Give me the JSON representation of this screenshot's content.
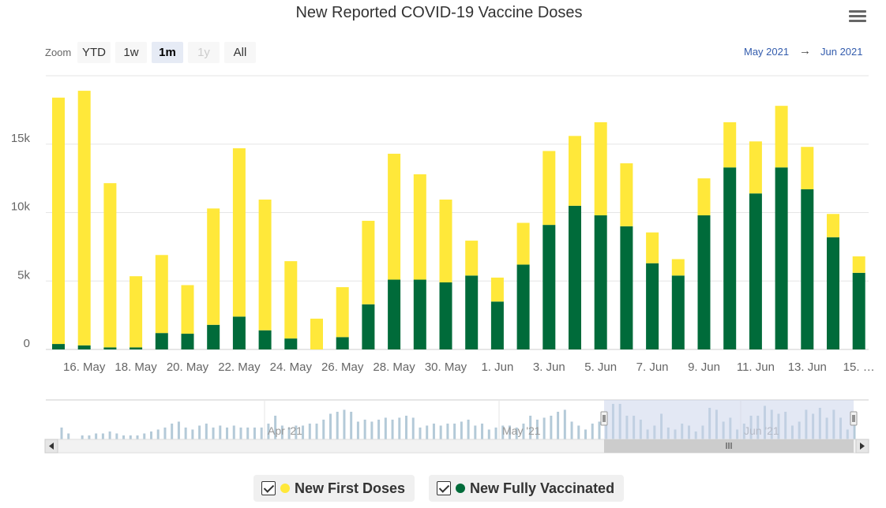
{
  "title": "New Reported COVID-19 Vaccine Doses",
  "menu_icon": "hamburger-menu-icon",
  "zoom": {
    "label": "Zoom",
    "buttons": [
      {
        "label": "YTD",
        "state": "normal"
      },
      {
        "label": "1w",
        "state": "normal"
      },
      {
        "label": "1m",
        "state": "selected"
      },
      {
        "label": "1y",
        "state": "disabled"
      },
      {
        "label": "All",
        "state": "normal"
      }
    ]
  },
  "range": {
    "from": "May 2021",
    "arrow": "→",
    "to": "Jun 2021"
  },
  "colors": {
    "first_doses": "#ffe83a",
    "fully_vaccinated": "#006b3a",
    "navigator_bars": "#b4cad8",
    "navigator_window": "#ccd6eb"
  },
  "navigator": {
    "labels": [
      "Apr '21",
      "May '21",
      "Jun '21"
    ],
    "values": [
      6,
      3,
      0,
      2,
      2,
      3,
      3,
      4,
      3,
      2,
      2,
      2,
      3,
      4,
      5,
      6,
      8,
      9,
      6,
      5,
      7,
      8,
      6,
      7,
      6,
      7,
      6,
      6,
      6,
      6,
      8,
      12,
      7,
      6,
      7,
      7,
      8,
      8,
      10,
      13,
      14,
      15,
      14,
      9,
      10,
      9,
      10,
      11,
      10,
      11,
      12,
      11,
      6,
      7,
      8,
      7,
      8,
      8,
      9,
      10,
      7,
      8,
      5,
      6,
      7,
      7,
      6,
      8,
      12,
      10,
      11,
      12,
      14,
      15,
      9,
      7,
      5,
      8,
      9,
      13,
      18,
      18,
      12,
      12,
      10,
      5,
      7,
      13,
      6,
      5,
      8,
      7,
      4,
      7,
      16,
      15,
      9,
      11,
      5,
      8,
      12,
      12,
      17,
      15,
      13,
      14,
      7,
      9,
      15,
      13,
      16,
      11,
      15,
      11,
      5,
      7
    ]
  },
  "legend": [
    {
      "label": "New First Doses",
      "color_key": "first_doses"
    },
    {
      "label": "New Fully Vaccinated",
      "color_key": "fully_vaccinated"
    }
  ],
  "chart_data": {
    "type": "bar",
    "stacked": true,
    "title": "New Reported COVID-19 Vaccine Doses",
    "categories": [
      "15 May",
      "16 May",
      "17 May",
      "18 May",
      "19 May",
      "20 May",
      "21 May",
      "22 May",
      "23 May",
      "24 May",
      "25 May",
      "26 May",
      "27 May",
      "28 May",
      "29 May",
      "30 May",
      "31 May",
      "1 Jun",
      "2 Jun",
      "3 Jun",
      "4 Jun",
      "5 Jun",
      "6 Jun",
      "7 Jun",
      "8 Jun",
      "9 Jun",
      "10 Jun",
      "11 Jun",
      "12 Jun",
      "13 Jun",
      "14 Jun",
      "15 Jun"
    ],
    "x_tick_labels": [
      "16. May",
      "18. May",
      "20. May",
      "22. May",
      "24. May",
      "26. May",
      "28. May",
      "30. May",
      "1. Jun",
      "3. Jun",
      "5. Jun",
      "7. Jun",
      "9. Jun",
      "11. Jun",
      "13. Jun",
      "15. …"
    ],
    "y_tick_labels": [
      "0",
      "5k",
      "10k",
      "15k"
    ],
    "ylim": [
      0,
      20000
    ],
    "grid": true,
    "legend_position": "bottom-center",
    "series": [
      {
        "name": "New Fully Vaccinated",
        "color_key": "fully_vaccinated",
        "values": [
          400,
          300,
          150,
          150,
          1200,
          1150,
          1800,
          2400,
          1400,
          800,
          0,
          900,
          3300,
          5100,
          5100,
          4900,
          5400,
          3500,
          6200,
          9100,
          10500,
          9800,
          9000,
          6300,
          5400,
          9800,
          13300,
          11400,
          13300,
          11700,
          8200,
          5600
        ]
      },
      {
        "name": "New First Doses",
        "color_key": "first_doses",
        "values": [
          18000,
          18600,
          12000,
          5200,
          5700,
          3550,
          8500,
          12300,
          9550,
          5650,
          2250,
          3650,
          6100,
          9200,
          7700,
          6050,
          2550,
          1750,
          3050,
          5400,
          5100,
          6800,
          4600,
          2250,
          1200,
          2700,
          3300,
          3800,
          4500,
          3100,
          1700,
          1200
        ]
      }
    ]
  }
}
